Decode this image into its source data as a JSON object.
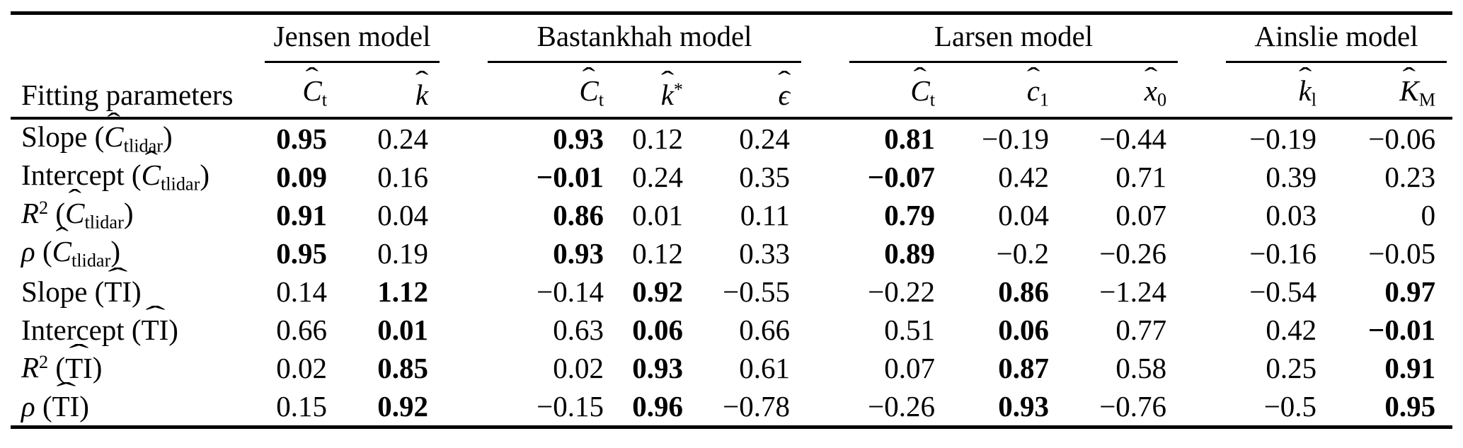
{
  "table": {
    "fitting_parameters_header": "Fitting parameters",
    "groups": [
      {
        "label": "Jensen model",
        "span": 2
      },
      {
        "label": "Bastankhah model",
        "span": 3
      },
      {
        "label": "Larsen model",
        "span": 3
      },
      {
        "label": "Ainslie model",
        "span": 2
      }
    ],
    "columns": [
      {
        "name": "jensen-Ct",
        "parts": [
          {
            "t": "C",
            "s": "hat"
          },
          {
            "t": "t",
            "s": "sub"
          }
        ]
      },
      {
        "name": "jensen-k",
        "parts": [
          {
            "t": "k",
            "s": "hat"
          }
        ]
      },
      {
        "name": "bastankhah-Ct",
        "parts": [
          {
            "t": "C",
            "s": "hat"
          },
          {
            "t": "t",
            "s": "sub"
          }
        ]
      },
      {
        "name": "bastankhah-k*",
        "parts": [
          {
            "t": "k",
            "s": "hat"
          },
          {
            "t": "*",
            "s": "sup"
          }
        ]
      },
      {
        "name": "bastankhah-eps",
        "parts": [
          {
            "t": "ϵ",
            "s": "hat"
          }
        ]
      },
      {
        "name": "larsen-Ct",
        "parts": [
          {
            "t": "C",
            "s": "hat"
          },
          {
            "t": "t",
            "s": "sub"
          }
        ]
      },
      {
        "name": "larsen-c1",
        "parts": [
          {
            "t": "c",
            "s": "hat"
          },
          {
            "t": "1",
            "s": "sub"
          }
        ]
      },
      {
        "name": "larsen-x0",
        "parts": [
          {
            "t": "x",
            "s": "hat"
          },
          {
            "t": "0",
            "s": "sub"
          }
        ]
      },
      {
        "name": "ainslie-kl",
        "parts": [
          {
            "t": "k",
            "s": "hat"
          },
          {
            "t": "l",
            "s": "sub"
          }
        ]
      },
      {
        "name": "ainslie-KM",
        "parts": [
          {
            "t": "K",
            "s": "hat"
          },
          {
            "t": "M",
            "s": "sub"
          }
        ]
      }
    ],
    "rows": [
      {
        "label_parts": [
          {
            "t": "Slope (",
            "s": "n"
          },
          {
            "t": "C",
            "s": "hat"
          },
          {
            "t": "tlidar",
            "s": "sub"
          },
          {
            "t": ")",
            "s": "n"
          }
        ],
        "cells": [
          {
            "v": "0.95",
            "b": true
          },
          {
            "v": "0.24",
            "b": false
          },
          {
            "v": "0.93",
            "b": true
          },
          {
            "v": "0.12",
            "b": false
          },
          {
            "v": "0.24",
            "b": false
          },
          {
            "v": "0.81",
            "b": true
          },
          {
            "v": "−0.19",
            "b": false
          },
          {
            "v": "−0.44",
            "b": false
          },
          {
            "v": "−0.19",
            "b": false
          },
          {
            "v": "−0.06",
            "b": false
          }
        ]
      },
      {
        "label_parts": [
          {
            "t": "Intercept (",
            "s": "n"
          },
          {
            "t": "C",
            "s": "hat"
          },
          {
            "t": "tlidar",
            "s": "sub"
          },
          {
            "t": ")",
            "s": "n"
          }
        ],
        "cells": [
          {
            "v": "0.09",
            "b": true
          },
          {
            "v": "0.16",
            "b": false
          },
          {
            "v": "−0.01",
            "b": true
          },
          {
            "v": "0.24",
            "b": false
          },
          {
            "v": "0.35",
            "b": false
          },
          {
            "v": "−0.07",
            "b": true
          },
          {
            "v": "0.42",
            "b": false
          },
          {
            "v": "0.71",
            "b": false
          },
          {
            "v": "0.39",
            "b": false
          },
          {
            "v": "0.23",
            "b": false
          }
        ]
      },
      {
        "label_parts": [
          {
            "t": "R",
            "s": "i"
          },
          {
            "t": "2",
            "s": "sup"
          },
          {
            "t": " (",
            "s": "n"
          },
          {
            "t": "C",
            "s": "hat"
          },
          {
            "t": "tlidar",
            "s": "sub"
          },
          {
            "t": ")",
            "s": "n"
          }
        ],
        "cells": [
          {
            "v": "0.91",
            "b": true
          },
          {
            "v": "0.04",
            "b": false
          },
          {
            "v": "0.86",
            "b": true
          },
          {
            "v": "0.01",
            "b": false
          },
          {
            "v": "0.11",
            "b": false
          },
          {
            "v": "0.79",
            "b": true
          },
          {
            "v": "0.04",
            "b": false
          },
          {
            "v": "0.07",
            "b": false
          },
          {
            "v": "0.03",
            "b": false
          },
          {
            "v": "0",
            "b": false
          }
        ]
      },
      {
        "label_parts": [
          {
            "t": "ρ",
            "s": "i"
          },
          {
            "t": " (",
            "s": "n"
          },
          {
            "t": "C",
            "s": "hat"
          },
          {
            "t": "tlidar",
            "s": "sub"
          },
          {
            "t": ")",
            "s": "n"
          }
        ],
        "cells": [
          {
            "v": "0.95",
            "b": true
          },
          {
            "v": "0.19",
            "b": false
          },
          {
            "v": "0.93",
            "b": true
          },
          {
            "v": "0.12",
            "b": false
          },
          {
            "v": "0.33",
            "b": false
          },
          {
            "v": "0.89",
            "b": true
          },
          {
            "v": "−0.2",
            "b": false
          },
          {
            "v": "−0.26",
            "b": false
          },
          {
            "v": "−0.16",
            "b": false
          },
          {
            "v": "−0.05",
            "b": false
          }
        ]
      },
      {
        "label_parts": [
          {
            "t": "Slope (",
            "s": "n"
          },
          {
            "t": "TI",
            "s": "rhat"
          },
          {
            "t": ")",
            "s": "n"
          }
        ],
        "cells": [
          {
            "v": "0.14",
            "b": false
          },
          {
            "v": "1.12",
            "b": true
          },
          {
            "v": "−0.14",
            "b": false
          },
          {
            "v": "0.92",
            "b": true
          },
          {
            "v": "−0.55",
            "b": false
          },
          {
            "v": "−0.22",
            "b": false
          },
          {
            "v": "0.86",
            "b": true
          },
          {
            "v": "−1.24",
            "b": false
          },
          {
            "v": "−0.54",
            "b": false
          },
          {
            "v": "0.97",
            "b": true
          }
        ]
      },
      {
        "label_parts": [
          {
            "t": "Intercept (",
            "s": "n"
          },
          {
            "t": "TI",
            "s": "rhat"
          },
          {
            "t": ")",
            "s": "n"
          }
        ],
        "cells": [
          {
            "v": "0.66",
            "b": false
          },
          {
            "v": "0.01",
            "b": true
          },
          {
            "v": "0.63",
            "b": false
          },
          {
            "v": "0.06",
            "b": true
          },
          {
            "v": "0.66",
            "b": false
          },
          {
            "v": "0.51",
            "b": false
          },
          {
            "v": "0.06",
            "b": true
          },
          {
            "v": "0.77",
            "b": false
          },
          {
            "v": "0.42",
            "b": false
          },
          {
            "v": "−0.01",
            "b": true
          }
        ]
      },
      {
        "label_parts": [
          {
            "t": "R",
            "s": "i"
          },
          {
            "t": "2",
            "s": "sup"
          },
          {
            "t": " (",
            "s": "n"
          },
          {
            "t": "TI",
            "s": "rhat"
          },
          {
            "t": ")",
            "s": "n"
          }
        ],
        "cells": [
          {
            "v": "0.02",
            "b": false
          },
          {
            "v": "0.85",
            "b": true
          },
          {
            "v": "0.02",
            "b": false
          },
          {
            "v": "0.93",
            "b": true
          },
          {
            "v": "0.61",
            "b": false
          },
          {
            "v": "0.07",
            "b": false
          },
          {
            "v": "0.87",
            "b": true
          },
          {
            "v": "0.58",
            "b": false
          },
          {
            "v": "0.25",
            "b": false
          },
          {
            "v": "0.91",
            "b": true
          }
        ]
      },
      {
        "label_parts": [
          {
            "t": "ρ",
            "s": "i"
          },
          {
            "t": " (",
            "s": "n"
          },
          {
            "t": "TI",
            "s": "rhat"
          },
          {
            "t": ")",
            "s": "n"
          }
        ],
        "cells": [
          {
            "v": "0.15",
            "b": false
          },
          {
            "v": "0.92",
            "b": true
          },
          {
            "v": "−0.15",
            "b": false
          },
          {
            "v": "0.96",
            "b": true
          },
          {
            "v": "−0.78",
            "b": false
          },
          {
            "v": "−0.26",
            "b": false
          },
          {
            "v": "0.93",
            "b": true
          },
          {
            "v": "−0.76",
            "b": false
          },
          {
            "v": "−0.5",
            "b": false
          },
          {
            "v": "0.95",
            "b": true
          }
        ]
      }
    ]
  }
}
